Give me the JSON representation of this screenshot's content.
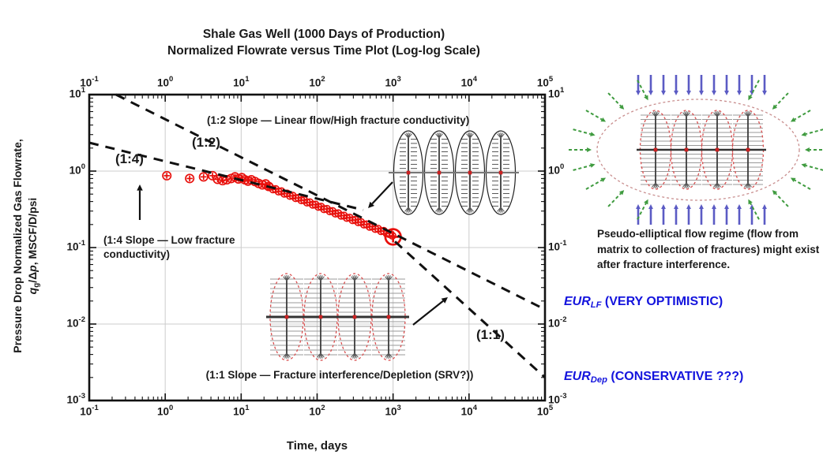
{
  "figure": {
    "title_line1": "Shale Gas Well (1000 Days of Production)",
    "title_line2": "Normalized Flowrate versus Time Plot (Log-log Scale)"
  },
  "chart_data": {
    "type": "scatter",
    "scale": "log-log",
    "grid": true,
    "x_axis": {
      "label": "Time, days",
      "tick_base": "10",
      "tick_exponents": [
        -1,
        0,
        1,
        2,
        3,
        4,
        5
      ],
      "range": [
        0.1,
        100000
      ],
      "mirrored_on_top": true
    },
    "y_axis": {
      "label_line1": "Pressure Drop Normalized Gas Flowrate,",
      "label_line2": "qg/Δp, MSCF/D/psi",
      "tick_base": "10",
      "tick_exponents": [
        1,
        0,
        -1,
        -2,
        -3
      ],
      "range": [
        0.001,
        10
      ],
      "mirrored_on_right": true
    },
    "series": [
      {
        "name": "normalized-gas-flowrate-data",
        "marker": "circled-plus",
        "color": "#e8100c",
        "points": [
          [
            1.05,
            0.87
          ],
          [
            2.1,
            0.8
          ],
          [
            3.2,
            0.84
          ],
          [
            4.2,
            0.87
          ],
          [
            4.9,
            0.78
          ],
          [
            5.7,
            0.75
          ],
          [
            6.5,
            0.77
          ],
          [
            7.4,
            0.8
          ],
          [
            8.3,
            0.84
          ],
          [
            9.2,
            0.79
          ],
          [
            10.2,
            0.82
          ],
          [
            11.2,
            0.77
          ],
          [
            12.3,
            0.74
          ],
          [
            13.6,
            0.77
          ],
          [
            15.2,
            0.73
          ],
          [
            17,
            0.69
          ],
          [
            19,
            0.66
          ],
          [
            21,
            0.68
          ],
          [
            23,
            0.63
          ],
          [
            24,
            0.621
          ],
          [
            26.2,
            0.577
          ],
          [
            28.5,
            0.581
          ],
          [
            31.1,
            0.54
          ],
          [
            33.9,
            0.544
          ],
          [
            36.9,
            0.506
          ],
          [
            40.3,
            0.509
          ],
          [
            43.9,
            0.473
          ],
          [
            47.8,
            0.476
          ],
          [
            52.1,
            0.443
          ],
          [
            56.8,
            0.446
          ],
          [
            62,
            0.415
          ],
          [
            67.5,
            0.417
          ],
          [
            73.6,
            0.388
          ],
          [
            80.2,
            0.391
          ],
          [
            87.5,
            0.363
          ],
          [
            95.3,
            0.365
          ],
          [
            104,
            0.34
          ],
          [
            113,
            0.342
          ],
          [
            123,
            0.318
          ],
          [
            135,
            0.32
          ],
          [
            147,
            0.298
          ],
          [
            160,
            0.3
          ],
          [
            174,
            0.278
          ],
          [
            190,
            0.281
          ],
          [
            207,
            0.261
          ],
          [
            226,
            0.262
          ],
          [
            246,
            0.244
          ],
          [
            268,
            0.246
          ],
          [
            293,
            0.228
          ],
          [
            319,
            0.23
          ],
          [
            348,
            0.214
          ],
          [
            379,
            0.215
          ],
          [
            413,
            0.2
          ],
          [
            450,
            0.201
          ],
          [
            491,
            0.187
          ],
          [
            535,
            0.189
          ],
          [
            583,
            0.175
          ],
          [
            636,
            0.176
          ],
          [
            693,
            0.164
          ],
          [
            755,
            0.165
          ],
          [
            823,
            0.153
          ],
          [
            897,
            0.154
          ],
          [
            978,
            0.143
          ]
        ],
        "final_point": [
          1000,
          0.138
        ]
      }
    ],
    "slope_lines": [
      {
        "id": "slope-1-2",
        "slope": "1:2",
        "from": [
          0.225,
          10
        ],
        "to": [
          100000,
          0.0155
        ]
      },
      {
        "id": "slope-1-4",
        "slope": "1:4",
        "from": [
          0.1,
          2.35
        ],
        "to": [
          405,
          0.31
        ]
      },
      {
        "id": "slope-1-1",
        "slope": "1:1",
        "from": [
          1060,
          0.12
        ],
        "to": [
          100000,
          0.002
        ]
      }
    ],
    "annotations": {
      "slope12_note": "(1:2 Slope — Linear flow/High fracture conductivity)",
      "slope12_label": "(1:2)",
      "slope14_label": "(1:4)",
      "slope14_note_line1": "(1:4 Slope — Low fracture",
      "slope14_note_line2": "conductivity)",
      "slope11_note": "(1:1 Slope — Fracture interference/Depletion (SRV?))",
      "slope11_label": "(1:1)"
    }
  },
  "y_axis_label": {
    "line1": "Pressure Drop Normalized Gas Flowrate,",
    "q": "q",
    "q_sub": "g",
    "mid": "/Δ",
    "p": "p",
    "rest": ", MSCF/D/psi"
  },
  "x_axis_label": "Time, days",
  "right_panel": {
    "caption": "Pseudo-elliptical flow regime (flow from matrix to collection of fractures) might exist after fracture interference.",
    "eur_lf": {
      "base": "EUR",
      "sub": "LF",
      "rest": " (VERY OPTIMISTIC)"
    },
    "eur_dep": {
      "base": "EUR",
      "sub": "Dep",
      "rest": " (CONSERVATIVE ???)"
    }
  },
  "colors": {
    "data_red": "#e8100c",
    "line_black": "#111111",
    "eur_blue": "#1414dd",
    "arrow_blue": "#5b5bc4",
    "arrow_green": "#3f9b3f",
    "srv_ellipse_red": "#d94f4f",
    "big_ellipse_pink": "#c98f8f",
    "grid_gray": "#cccccc",
    "flow_line_gray": "#999999"
  }
}
